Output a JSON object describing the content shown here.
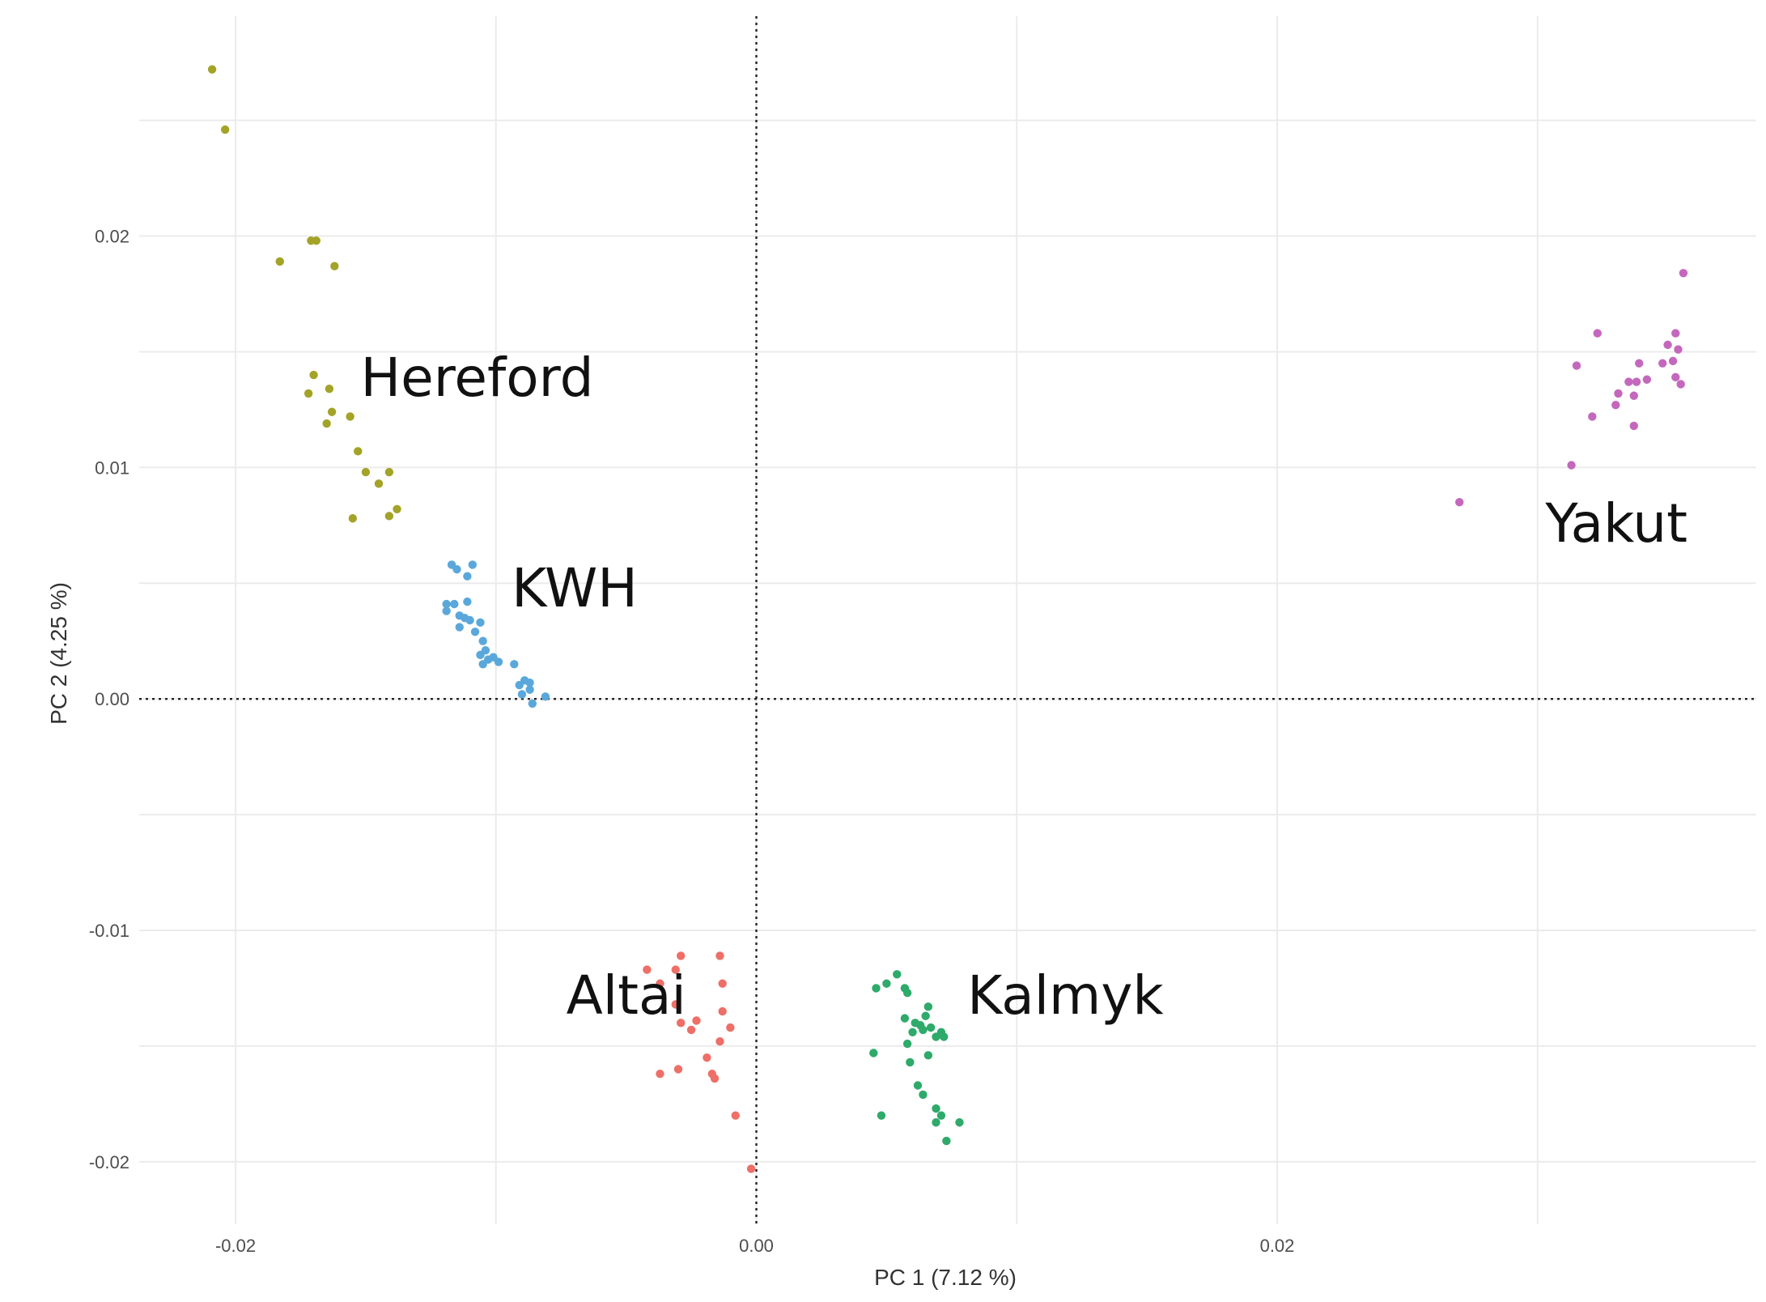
{
  "chart_data": {
    "type": "scatter",
    "title": "",
    "xlabel": "PC 1 (7.12 %)",
    "ylabel": "PC 2 (4.25 %)",
    "xlim": [
      -0.0237,
      0.0384
    ],
    "ylim": [
      -0.0227,
      0.0295
    ],
    "x_ticks": [
      -0.02,
      0.0,
      0.02
    ],
    "x_tick_labels": [
      "-0.02",
      "0.00",
      "0.02"
    ],
    "y_ticks": [
      -0.02,
      -0.01,
      0.0,
      0.01,
      0.02
    ],
    "y_tick_labels": [
      "-0.02",
      "-0.01",
      "0.00",
      "0.01",
      "0.02"
    ],
    "grid": true,
    "reference_lines": [
      {
        "axis": "x",
        "value": 0.0,
        "style": "dotted"
      },
      {
        "axis": "y",
        "value": 0.0,
        "style": "dotted"
      }
    ],
    "legend": "none",
    "series": [
      {
        "name": "Hereford",
        "color": "#a3a328",
        "label_at": [
          -0.0152,
          0.0131
        ],
        "points": [
          [
            -0.0209,
            0.0272
          ],
          [
            -0.0204,
            0.0246
          ],
          [
            -0.0171,
            0.0198
          ],
          [
            -0.0169,
            0.0198
          ],
          [
            -0.0183,
            0.0189
          ],
          [
            -0.0162,
            0.0187
          ],
          [
            -0.017,
            0.014
          ],
          [
            -0.0164,
            0.0134
          ],
          [
            -0.0172,
            0.0132
          ],
          [
            -0.0163,
            0.0124
          ],
          [
            -0.0156,
            0.0122
          ],
          [
            -0.0165,
            0.0119
          ],
          [
            -0.0153,
            0.0107
          ],
          [
            -0.015,
            0.0098
          ],
          [
            -0.0141,
            0.0098
          ],
          [
            -0.0145,
            0.0093
          ],
          [
            -0.0138,
            0.0082
          ],
          [
            -0.0141,
            0.0079
          ],
          [
            -0.0155,
            0.0078
          ]
        ]
      },
      {
        "name": "KWH",
        "color": "#5aa8db",
        "label_at": [
          -0.0094,
          0.004
        ],
        "points": [
          [
            -0.0117,
            0.0058
          ],
          [
            -0.0115,
            0.0056
          ],
          [
            -0.0109,
            0.0058
          ],
          [
            -0.0111,
            0.0053
          ],
          [
            -0.0119,
            0.0041
          ],
          [
            -0.0116,
            0.0041
          ],
          [
            -0.0111,
            0.0042
          ],
          [
            -0.0119,
            0.0038
          ],
          [
            -0.0114,
            0.0036
          ],
          [
            -0.0112,
            0.0035
          ],
          [
            -0.011,
            0.0034
          ],
          [
            -0.0106,
            0.0033
          ],
          [
            -0.0114,
            0.0031
          ],
          [
            -0.0108,
            0.0029
          ],
          [
            -0.0105,
            0.0025
          ],
          [
            -0.0104,
            0.0021
          ],
          [
            -0.0106,
            0.0019
          ],
          [
            -0.0103,
            0.0017
          ],
          [
            -0.0101,
            0.0018
          ],
          [
            -0.0099,
            0.0016
          ],
          [
            -0.0105,
            0.0015
          ],
          [
            -0.0093,
            0.0015
          ],
          [
            -0.0089,
            0.0008
          ],
          [
            -0.0087,
            0.0007
          ],
          [
            -0.0091,
            0.0006
          ],
          [
            -0.0087,
            0.0004
          ],
          [
            -0.009,
            0.0002
          ],
          [
            -0.0081,
            0.0001
          ],
          [
            -0.0086,
            -0.0002
          ]
        ]
      },
      {
        "name": "Altai",
        "color": "#ee6f68",
        "label_at": [
          -0.0073,
          -0.0136
        ],
        "points": [
          [
            -0.0029,
            -0.0111
          ],
          [
            -0.0014,
            -0.0111
          ],
          [
            -0.0031,
            -0.0117
          ],
          [
            -0.0042,
            -0.0117
          ],
          [
            -0.0037,
            -0.0123
          ],
          [
            -0.0013,
            -0.0123
          ],
          [
            -0.0031,
            -0.0132
          ],
          [
            -0.0013,
            -0.0135
          ],
          [
            -0.0023,
            -0.0139
          ],
          [
            -0.0029,
            -0.014
          ],
          [
            -0.0025,
            -0.0143
          ],
          [
            -0.001,
            -0.0142
          ],
          [
            -0.0014,
            -0.0148
          ],
          [
            -0.0019,
            -0.0155
          ],
          [
            -0.003,
            -0.016
          ],
          [
            -0.0037,
            -0.0162
          ],
          [
            -0.0017,
            -0.0162
          ],
          [
            -0.0016,
            -0.0164
          ],
          [
            -0.0008,
            -0.018
          ],
          [
            -0.0002,
            -0.0203
          ]
        ]
      },
      {
        "name": "Kalmyk",
        "color": "#2eaa6a",
        "label_at": [
          0.0081,
          -0.0136
        ],
        "points": [
          [
            0.0054,
            -0.0119
          ],
          [
            0.005,
            -0.0123
          ],
          [
            0.0046,
            -0.0125
          ],
          [
            0.0057,
            -0.0125
          ],
          [
            0.0058,
            -0.0127
          ],
          [
            0.0066,
            -0.0133
          ],
          [
            0.0065,
            -0.0137
          ],
          [
            0.0057,
            -0.0138
          ],
          [
            0.0061,
            -0.014
          ],
          [
            0.0063,
            -0.0141
          ],
          [
            0.0067,
            -0.0142
          ],
          [
            0.0064,
            -0.0143
          ],
          [
            0.0071,
            -0.0144
          ],
          [
            0.006,
            -0.0144
          ],
          [
            0.0072,
            -0.0146
          ],
          [
            0.0069,
            -0.0146
          ],
          [
            0.0058,
            -0.0149
          ],
          [
            0.0066,
            -0.0154
          ],
          [
            0.0045,
            -0.0153
          ],
          [
            0.0059,
            -0.0157
          ],
          [
            0.0062,
            -0.0167
          ],
          [
            0.0064,
            -0.0171
          ],
          [
            0.0069,
            -0.0177
          ],
          [
            0.0071,
            -0.018
          ],
          [
            0.0048,
            -0.018
          ],
          [
            0.0078,
            -0.0183
          ],
          [
            0.0069,
            -0.0183
          ],
          [
            0.0073,
            -0.0191
          ]
        ]
      },
      {
        "name": "Yakut",
        "color": "#c468bd",
        "label_at": [
          0.0303,
          0.0068
        ],
        "points": [
          [
            0.0356,
            0.0184
          ],
          [
            0.0323,
            0.0158
          ],
          [
            0.0353,
            0.0158
          ],
          [
            0.035,
            0.0153
          ],
          [
            0.0354,
            0.0151
          ],
          [
            0.0352,
            0.0146
          ],
          [
            0.0339,
            0.0145
          ],
          [
            0.0348,
            0.0145
          ],
          [
            0.0315,
            0.0144
          ],
          [
            0.0353,
            0.0139
          ],
          [
            0.0355,
            0.0136
          ],
          [
            0.0335,
            0.0137
          ],
          [
            0.0338,
            0.0137
          ],
          [
            0.0342,
            0.0138
          ],
          [
            0.0331,
            0.0132
          ],
          [
            0.0337,
            0.0131
          ],
          [
            0.033,
            0.0127
          ],
          [
            0.0321,
            0.0122
          ],
          [
            0.0337,
            0.0118
          ],
          [
            0.0313,
            0.0101
          ],
          [
            0.027,
            0.0085
          ]
        ]
      }
    ]
  }
}
